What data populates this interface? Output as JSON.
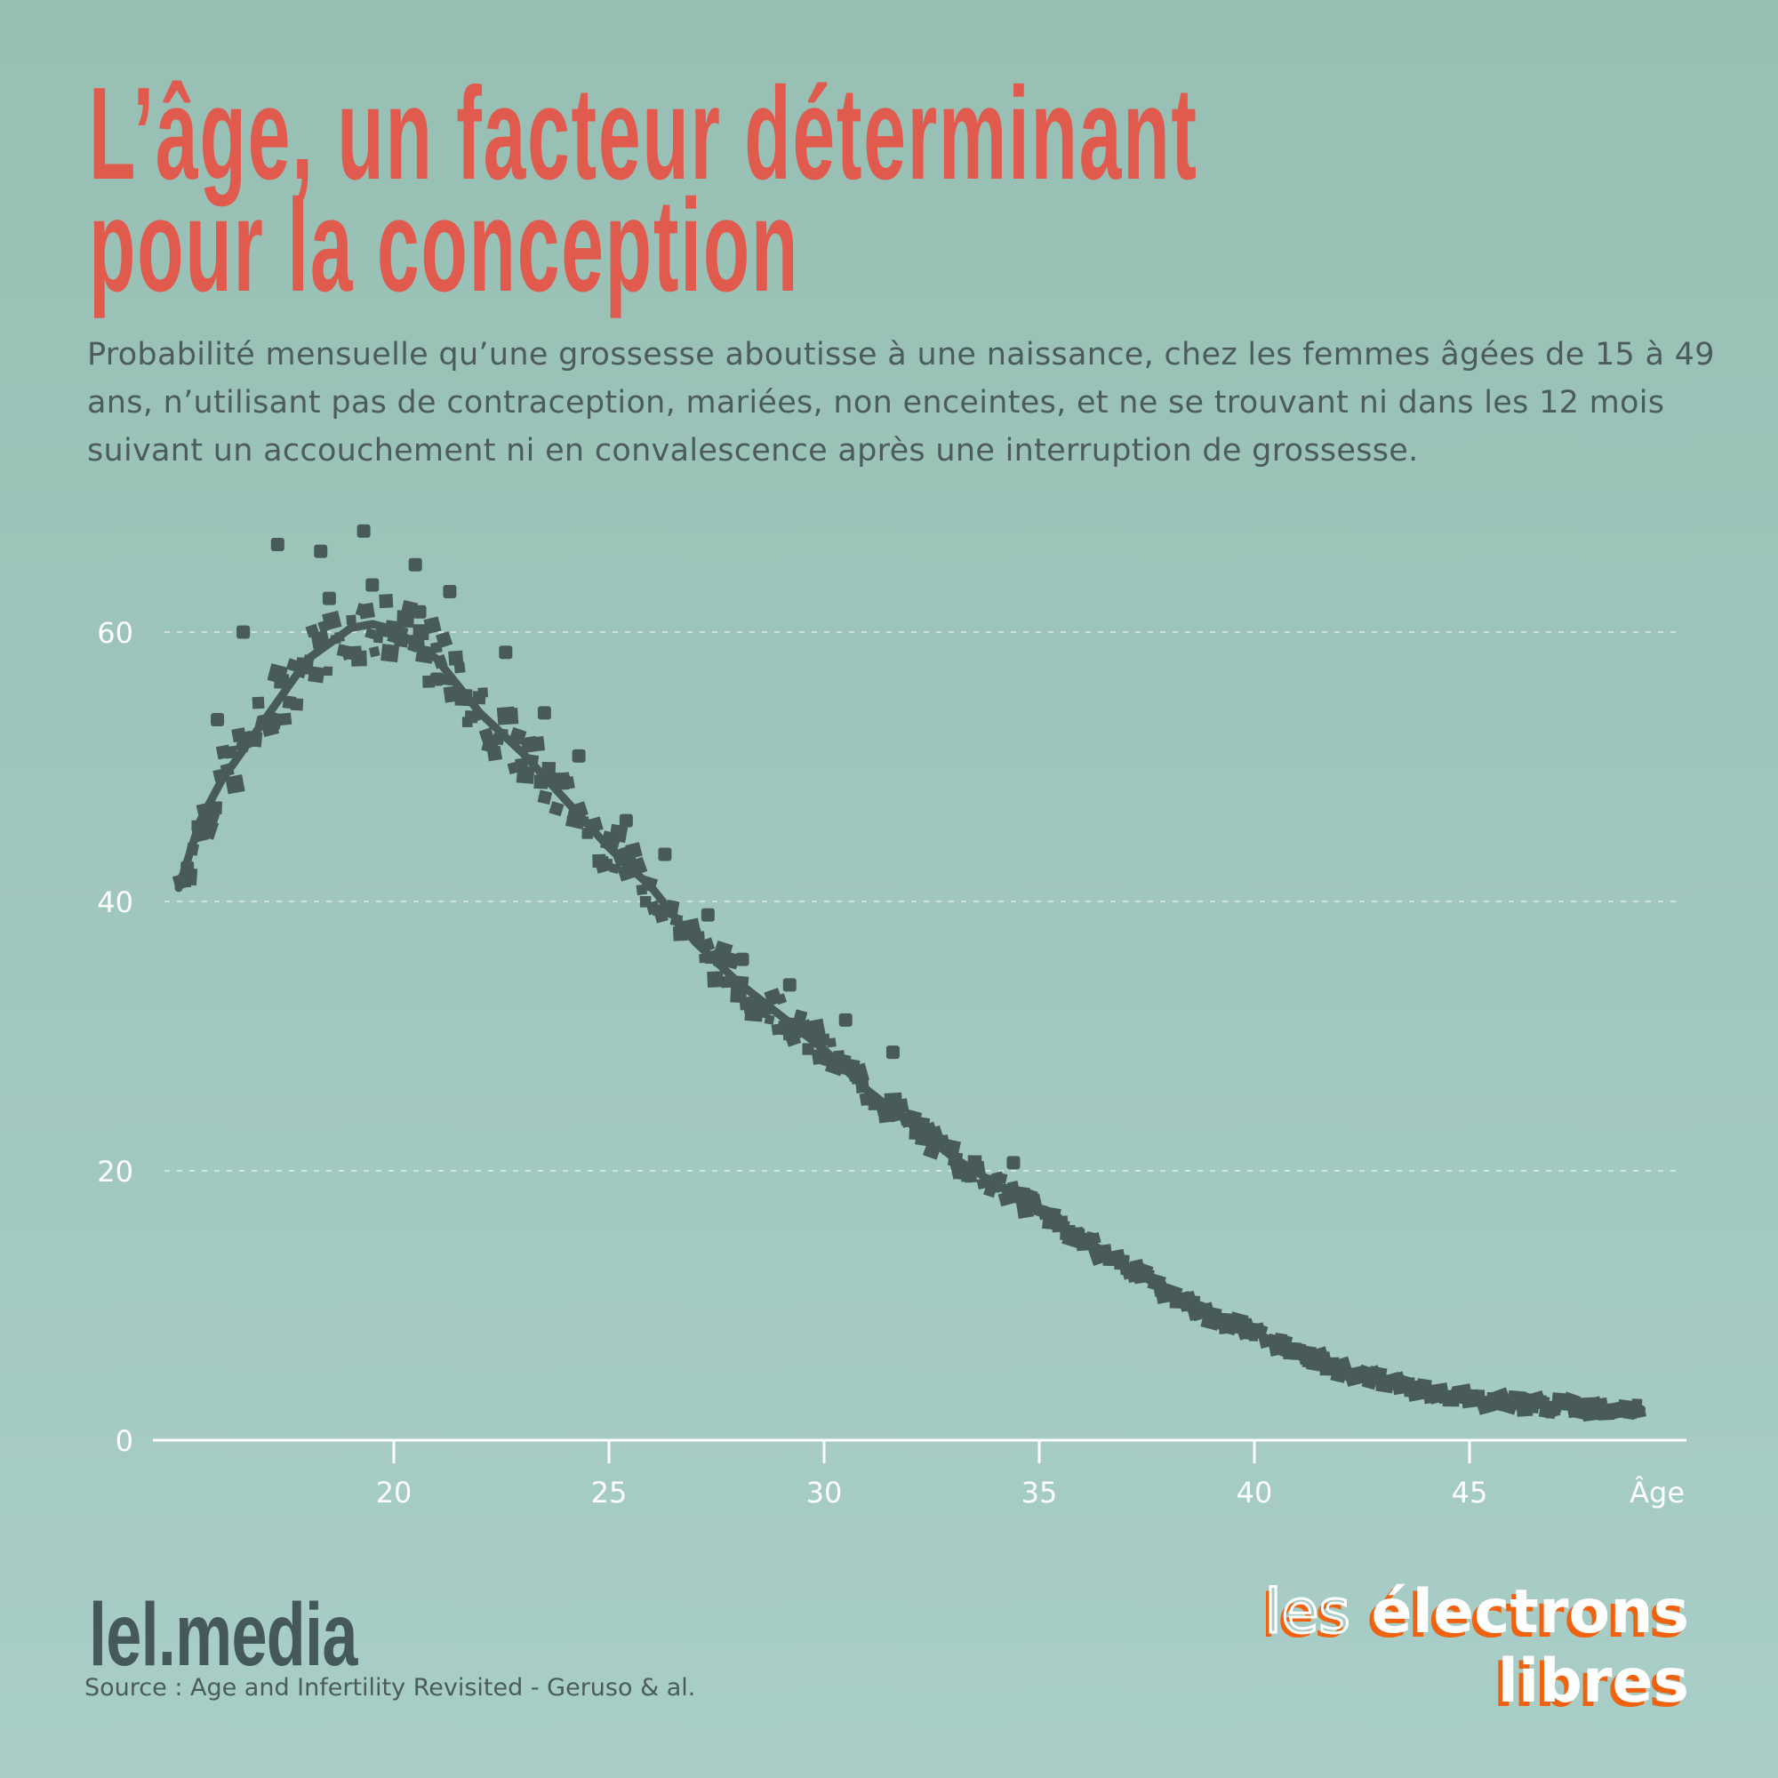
{
  "title": {
    "line1": "L’âge, un facteur déterminant",
    "line2": "pour la conception"
  },
  "subtitle": "Probabilité mensuelle qu’une grossesse aboutisse à une naissance, chez les femmes âgées de 15 à 49 ans, n’utilisant pas de contraception, mariées, non enceintes, et ne se trouvant ni dans les 12 mois suivant un accouchement ni en convalescence après une interruption de grossesse.",
  "footer": {
    "brand": "lel.media",
    "source": "Source : Age and Infertility Revisited - Geruso & al.",
    "logo_line1_a": "les",
    "logo_line1_b": "électrons",
    "logo_line2": "libres"
  },
  "colors": {
    "title": "#e05a4e",
    "marks": "#485b59",
    "axis": "#ffffff",
    "logo_shadow": "#f0620f"
  },
  "chart_data": {
    "type": "scatter",
    "title": "",
    "xlabel": "Âge",
    "ylabel": "",
    "xlim": [
      15,
      49.5
    ],
    "ylim": [
      0,
      65
    ],
    "x_ticks": [
      20,
      25,
      30,
      35,
      40,
      45
    ],
    "x_tick_labels": [
      "20",
      "25",
      "30",
      "35",
      "40",
      "45"
    ],
    "y_ticks": [
      0,
      20,
      40,
      60
    ],
    "y_tick_labels": [
      "0",
      "20",
      "40",
      "60"
    ],
    "grid": "horizontal dashed",
    "trend": {
      "x": [
        15,
        15.5,
        16,
        17,
        18,
        19,
        19.5,
        20,
        21,
        22,
        23,
        24,
        25,
        26,
        27,
        28,
        29,
        30,
        31,
        32,
        33,
        34,
        35,
        36,
        37,
        38,
        39,
        40,
        41,
        42,
        43,
        44,
        45,
        46,
        47,
        48,
        49
      ],
      "y": [
        41,
        46,
        49,
        53.5,
        58,
        60.3,
        60.6,
        60.2,
        58,
        54,
        51,
        47.5,
        44,
        41,
        37,
        34,
        31.5,
        29,
        26,
        23.5,
        21,
        19,
        17,
        15,
        13,
        11,
        9.2,
        8,
        6.5,
        5.2,
        4.4,
        3.7,
        3.1,
        2.8,
        2.6,
        2.4,
        2.3
      ]
    },
    "outliers": {
      "x": [
        15.2,
        15.9,
        16.5,
        17.3,
        18.3,
        19.3,
        19.5,
        20.5,
        20.6,
        21.3,
        22.6,
        23.5,
        24.3,
        25.4,
        26.3,
        27.3,
        28.1,
        29.2,
        30.5,
        31.6,
        34.4,
        21.0,
        18.5
      ],
      "y": [
        42.5,
        53.5,
        60,
        66.5,
        66,
        67.5,
        63.5,
        65,
        61.5,
        63,
        58.5,
        54,
        50.8,
        46,
        43.5,
        39,
        35.7,
        33.8,
        31.2,
        28.8,
        20.6,
        56.5,
        62.5
      ]
    }
  }
}
